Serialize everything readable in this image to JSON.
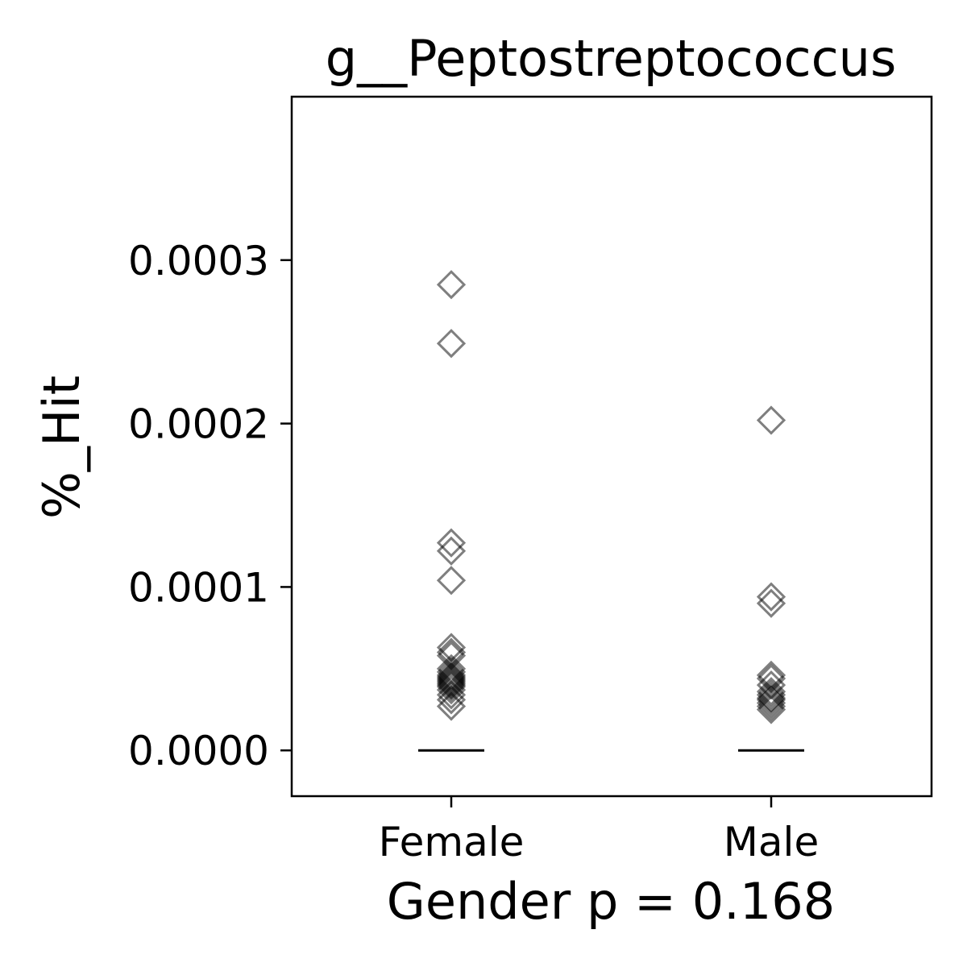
{
  "chart_data": {
    "type": "scatter",
    "title": "g__Peptostreptococcus",
    "xlabel": "Gender p = 0.168",
    "ylabel": "%_Hit",
    "categories": [
      "Female",
      "Male"
    ],
    "y_ticks": [
      "0.0000",
      "0.0001",
      "0.0002",
      "0.0003"
    ],
    "y_tick_values": [
      0,
      0.0001,
      0.0002,
      0.0003
    ],
    "ylim": [
      -2.8e-05,
      0.0004
    ],
    "grid": false,
    "marker": "diamond-open",
    "marker_color": "#000000",
    "marker_alpha": 0.5,
    "series": [
      {
        "category": "Female",
        "values": [
          0.000285,
          0.000249,
          0.000127,
          0.000122,
          0.000104,
          6.3e-05,
          6e-05,
          5.8e-05,
          5e-05,
          4.8e-05,
          4.6e-05,
          4.5e-05,
          4.4e-05,
          4.3e-05,
          4.2e-05,
          4.1e-05,
          4e-05,
          3.9e-05,
          3.7e-05,
          3.4e-05,
          3.1e-05,
          2.7e-05
        ],
        "median": 0.0
      },
      {
        "category": "Male",
        "values": [
          0.000202,
          9.4e-05,
          9e-05,
          4.6e-05,
          4.4e-05,
          4e-05,
          3.6e-05,
          3.4e-05,
          3.2e-05,
          3.1e-05,
          2.9e-05,
          2.7e-05,
          2.5e-05
        ],
        "median": 0.0
      }
    ]
  }
}
